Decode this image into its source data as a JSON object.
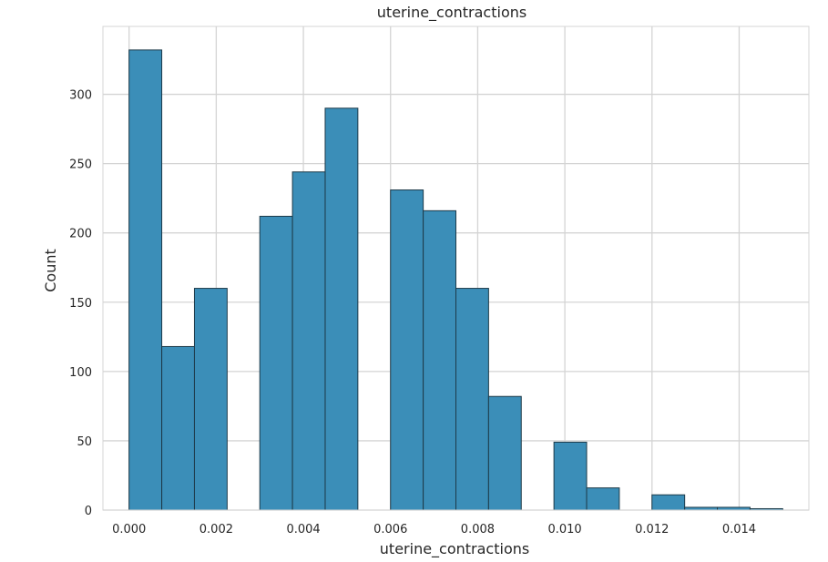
{
  "chart_data": {
    "type": "bar",
    "title": "uterine_contractions",
    "xlabel": "uterine_contractions",
    "ylabel": "Count",
    "xlim": [
      -0.0006,
      0.0156
    ],
    "ylim": [
      0,
      349
    ],
    "xticks": [
      0.0,
      0.002,
      0.004,
      0.006,
      0.008,
      0.01,
      0.012,
      0.014
    ],
    "xtick_labels": [
      "0.000",
      "0.002",
      "0.004",
      "0.006",
      "0.008",
      "0.010",
      "0.012",
      "0.014"
    ],
    "yticks": [
      0,
      50,
      100,
      150,
      200,
      250,
      300
    ],
    "ytick_labels": [
      "0",
      "50",
      "100",
      "150",
      "200",
      "250",
      "300"
    ],
    "grid": true,
    "bar_color": "#3b8eb8",
    "bar_edge_color": "#1d3a49",
    "grid_color": "#d4d4d4",
    "bins": [
      {
        "start": 0.0,
        "end": 0.00075,
        "count": 332
      },
      {
        "start": 0.00075,
        "end": 0.0015,
        "count": 118
      },
      {
        "start": 0.0015,
        "end": 0.00225,
        "count": 160
      },
      {
        "start": 0.00225,
        "end": 0.003,
        "count": 0
      },
      {
        "start": 0.003,
        "end": 0.00375,
        "count": 212
      },
      {
        "start": 0.00375,
        "end": 0.0045,
        "count": 244
      },
      {
        "start": 0.0045,
        "end": 0.00525,
        "count": 290
      },
      {
        "start": 0.00525,
        "end": 0.006,
        "count": 0
      },
      {
        "start": 0.006,
        "end": 0.00675,
        "count": 231
      },
      {
        "start": 0.00675,
        "end": 0.0075,
        "count": 216
      },
      {
        "start": 0.0075,
        "end": 0.00825,
        "count": 160
      },
      {
        "start": 0.00825,
        "end": 0.009,
        "count": 82
      },
      {
        "start": 0.009,
        "end": 0.00975,
        "count": 0
      },
      {
        "start": 0.00975,
        "end": 0.0105,
        "count": 49
      },
      {
        "start": 0.0105,
        "end": 0.01125,
        "count": 16
      },
      {
        "start": 0.01125,
        "end": 0.012,
        "count": 0
      },
      {
        "start": 0.012,
        "end": 0.01275,
        "count": 11
      },
      {
        "start": 0.01275,
        "end": 0.0135,
        "count": 2
      },
      {
        "start": 0.0135,
        "end": 0.01425,
        "count": 2
      },
      {
        "start": 0.01425,
        "end": 0.015,
        "count": 1
      }
    ]
  }
}
